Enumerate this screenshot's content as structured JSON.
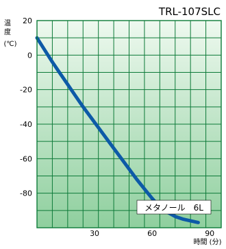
{
  "chart_data": {
    "type": "line",
    "title": "TRL-107SLC",
    "ylabel_chars": [
      "温",
      "度"
    ],
    "ylabel_unit": "(℃)",
    "xlabel": "時間 (分)",
    "xlim": [
      0,
      96
    ],
    "ylim": [
      -100,
      20
    ],
    "x_gridlines": [
      8,
      16,
      24,
      32,
      40,
      48,
      56,
      64,
      72,
      80,
      88
    ],
    "y_gridlines": [
      10,
      0,
      -10,
      -20,
      -30,
      -40,
      -50,
      -60,
      -70,
      -80,
      -90
    ],
    "xticks": [
      {
        "value": 30,
        "label": "30"
      },
      {
        "value": 60,
        "label": "60"
      },
      {
        "value": 90,
        "label": "90"
      }
    ],
    "yticks": [
      {
        "value": 20,
        "label": "20"
      },
      {
        "value": 0,
        "label": "0"
      },
      {
        "value": -20,
        "label": "-20"
      },
      {
        "value": -40,
        "label": "-40"
      },
      {
        "value": -60,
        "label": "-60"
      },
      {
        "value": -80,
        "label": "-80"
      }
    ],
    "series": [
      {
        "name": "メタノール　6L",
        "color": "#0d5aa7",
        "x": [
          0,
          4,
          8,
          12,
          16,
          20,
          24,
          28,
          32,
          36,
          40,
          44,
          48,
          52,
          56,
          60,
          64,
          68,
          72,
          76,
          80,
          84
        ],
        "y": [
          10,
          3,
          -4,
          -10.5,
          -17,
          -23.5,
          -30,
          -36,
          -42,
          -48,
          -54,
          -60,
          -66,
          -72,
          -77.5,
          -83,
          -88,
          -91,
          -93.5,
          -95,
          -96,
          -97
        ]
      }
    ],
    "colors": {
      "plot_bg_top": "#eef9ef",
      "plot_bg_bottom": "#8fcf9e",
      "grid": "#0c7a38",
      "text": "#000000",
      "legend_bg": "#ffffff"
    }
  }
}
